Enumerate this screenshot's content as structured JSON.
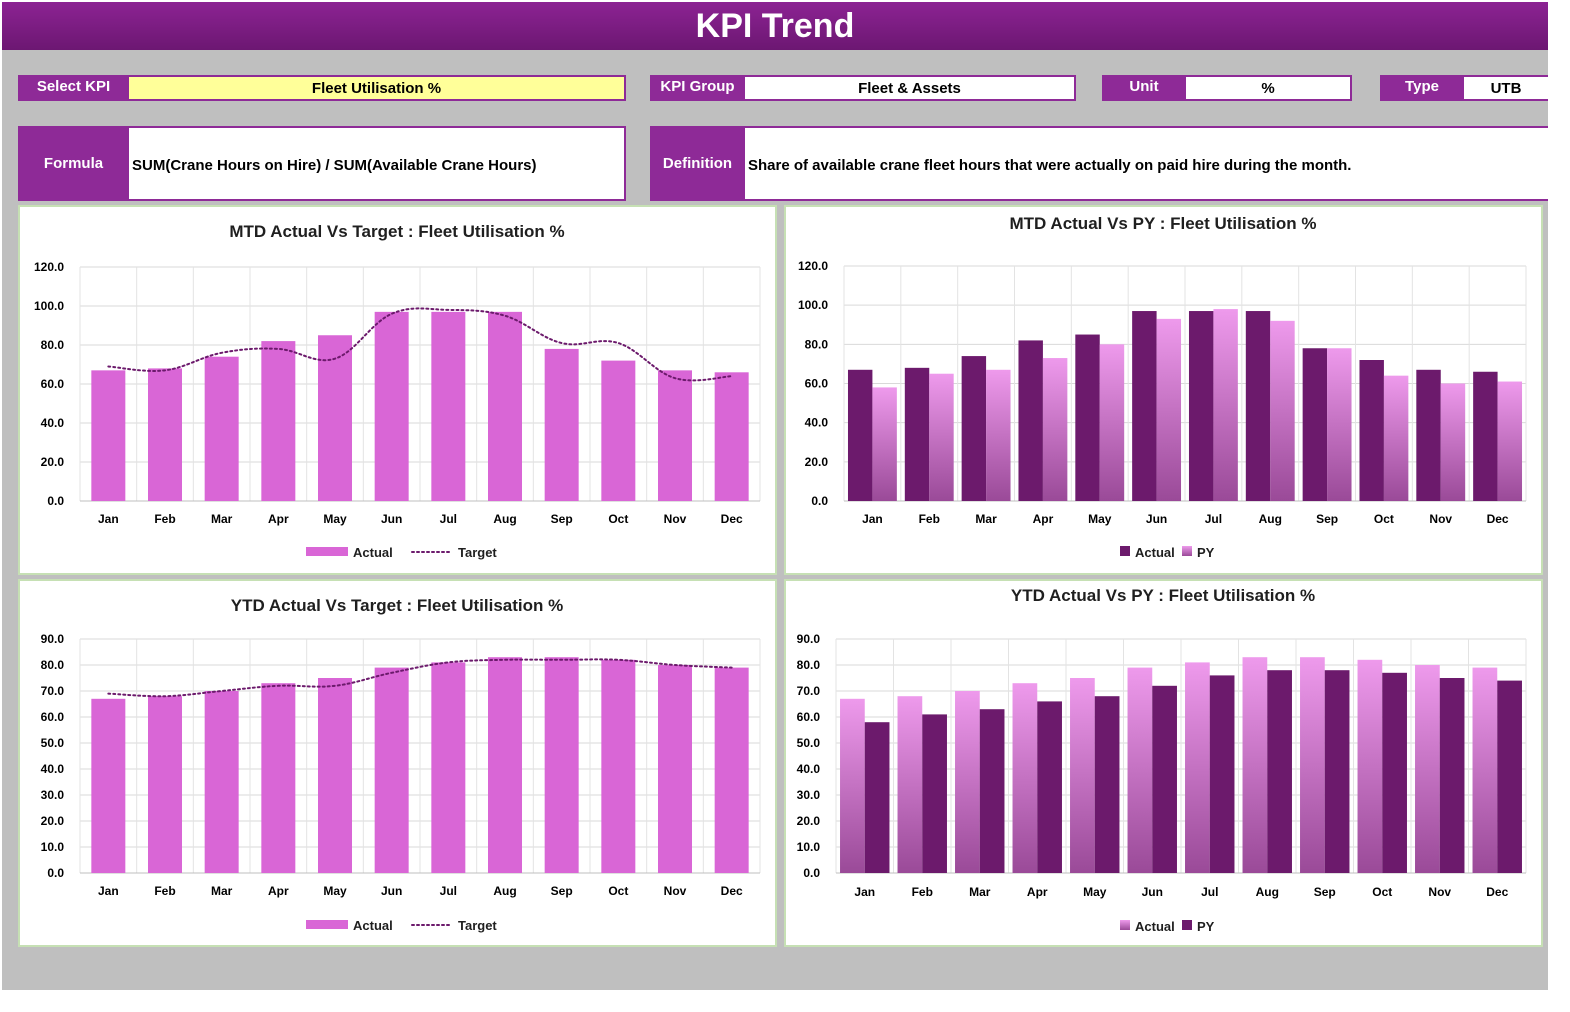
{
  "header": {
    "title": "KPI Trend"
  },
  "selectors": {
    "select_kpi_label": "Select KPI",
    "select_kpi_value": "Fleet Utilisation %",
    "kpi_group_label": "KPI Group",
    "kpi_group_value": "Fleet & Assets",
    "unit_label": "Unit",
    "unit_value": "%",
    "type_label": "Type",
    "type_value": "UTB"
  },
  "info": {
    "formula_label": "Formula",
    "formula_value": "SUM(Crane Hours on Hire) / SUM(Available Crane Hours)",
    "definition_label": "Definition",
    "definition_value": "Share of available crane fleet hours that were actually on paid hire during the month."
  },
  "colors": {
    "header": "#7a1c80",
    "label_bg": "#8e2a97",
    "select_bg": "#ffff99",
    "actual_pink": "#d966d6",
    "actual_dark": "#6c1a6c",
    "py_light": "#e58ae3",
    "target_line": "#6c1a6c",
    "panel_border": "#c6e0b4"
  },
  "chart_data": [
    {
      "id": "mtd_target",
      "type": "bar",
      "title": "MTD Actual Vs Target : Fleet Utilisation %",
      "categories": [
        "Jan",
        "Feb",
        "Mar",
        "Apr",
        "May",
        "Jun",
        "Jul",
        "Aug",
        "Sep",
        "Oct",
        "Nov",
        "Dec"
      ],
      "ylim": [
        0,
        120
      ],
      "yticks": [
        "0.0",
        "20.0",
        "40.0",
        "60.0",
        "80.0",
        "100.0",
        "120.0"
      ],
      "grid": true,
      "legend_position": "bottom",
      "series": [
        {
          "name": "Actual",
          "kind": "bar",
          "style": "solid_pink",
          "values": [
            67,
            68,
            74,
            82,
            85,
            97,
            97,
            97,
            78,
            72,
            67,
            66
          ]
        },
        {
          "name": "Target",
          "kind": "line",
          "style": "dotted",
          "values": [
            69,
            67,
            76,
            78,
            73,
            96,
            98,
            95,
            81,
            81,
            63,
            64
          ]
        }
      ]
    },
    {
      "id": "mtd_py",
      "type": "bar",
      "title": "MTD Actual Vs PY : Fleet Utilisation %",
      "categories": [
        "Jan",
        "Feb",
        "Mar",
        "Apr",
        "May",
        "Jun",
        "Jul",
        "Aug",
        "Sep",
        "Oct",
        "Nov",
        "Dec"
      ],
      "ylim": [
        0,
        120
      ],
      "yticks": [
        "0.0",
        "20.0",
        "40.0",
        "60.0",
        "80.0",
        "100.0",
        "120.0"
      ],
      "grid": true,
      "legend_position": "bottom",
      "series": [
        {
          "name": "Actual",
          "kind": "bar",
          "style": "dark",
          "values": [
            67,
            68,
            74,
            82,
            85,
            97,
            97,
            97,
            78,
            72,
            67,
            66
          ]
        },
        {
          "name": "PY",
          "kind": "bar",
          "style": "gradient_light",
          "values": [
            58,
            65,
            67,
            73,
            80,
            93,
            98,
            92,
            78,
            64,
            60,
            61
          ]
        }
      ]
    },
    {
      "id": "ytd_target",
      "type": "bar",
      "title": "YTD Actual Vs Target : Fleet Utilisation %",
      "categories": [
        "Jan",
        "Feb",
        "Mar",
        "Apr",
        "May",
        "Jun",
        "Jul",
        "Aug",
        "Sep",
        "Oct",
        "Nov",
        "Dec"
      ],
      "ylim": [
        0,
        90
      ],
      "yticks": [
        "0.0",
        "10.0",
        "20.0",
        "30.0",
        "40.0",
        "50.0",
        "60.0",
        "70.0",
        "80.0",
        "90.0"
      ],
      "grid": true,
      "legend_position": "bottom",
      "series": [
        {
          "name": "Actual",
          "kind": "bar",
          "style": "solid_pink",
          "values": [
            67,
            68,
            70,
            73,
            75,
            79,
            81,
            83,
            83,
            82,
            80,
            79
          ]
        },
        {
          "name": "Target",
          "kind": "line",
          "style": "dotted",
          "values": [
            69,
            68,
            70,
            72,
            72,
            77,
            81,
            82,
            82,
            82,
            80,
            79
          ]
        }
      ]
    },
    {
      "id": "ytd_py",
      "type": "bar",
      "title": "YTD Actual Vs PY : Fleet Utilisation %",
      "categories": [
        "Jan",
        "Feb",
        "Mar",
        "Apr",
        "May",
        "Jun",
        "Jul",
        "Aug",
        "Sep",
        "Oct",
        "Nov",
        "Dec"
      ],
      "ylim": [
        0,
        90
      ],
      "yticks": [
        "0.0",
        "10.0",
        "20.0",
        "30.0",
        "40.0",
        "50.0",
        "60.0",
        "70.0",
        "80.0",
        "90.0"
      ],
      "grid": true,
      "legend_position": "bottom",
      "series": [
        {
          "name": "Actual",
          "kind": "bar",
          "style": "gradient_light",
          "values": [
            67,
            68,
            70,
            73,
            75,
            79,
            81,
            83,
            83,
            82,
            80,
            79
          ]
        },
        {
          "name": "PY",
          "kind": "bar",
          "style": "dark",
          "values": [
            58,
            61,
            63,
            66,
            68,
            72,
            76,
            78,
            78,
            77,
            75,
            74
          ]
        }
      ]
    }
  ]
}
